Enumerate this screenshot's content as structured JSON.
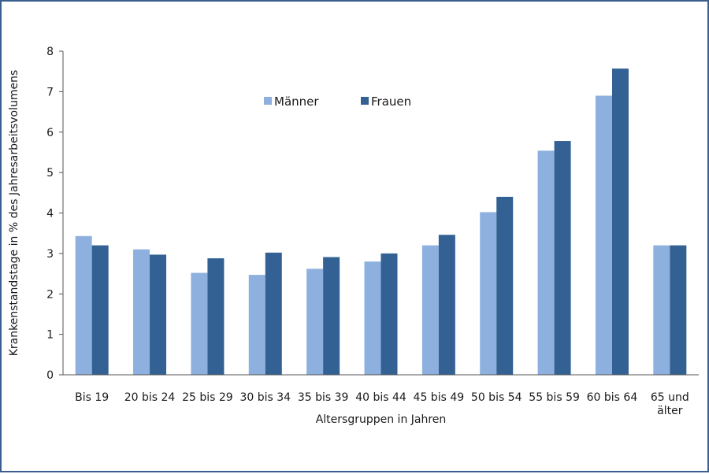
{
  "chart_data": {
    "type": "bar",
    "categories": [
      "Bis 19",
      "20 bis 24",
      "25 bis 29",
      "30 bis 34",
      "35 bis 39",
      "40 bis 44",
      "45 bis 49",
      "50 bis 54",
      "55 bis 59",
      "60 bis 64",
      "65 und\nälter"
    ],
    "series": [
      {
        "name": "Männer",
        "color": "#8db0de",
        "values": [
          3.43,
          3.1,
          2.52,
          2.47,
          2.62,
          2.8,
          3.2,
          4.02,
          5.54,
          6.9,
          3.2
        ]
      },
      {
        "name": "Frauen",
        "color": "#336194",
        "values": [
          3.2,
          2.97,
          2.88,
          3.02,
          2.91,
          3.0,
          3.46,
          4.4,
          5.78,
          7.57,
          3.2
        ]
      }
    ],
    "xlabel": "Altersgruppen in Jahren",
    "ylabel": "Krankenstandstage in % des Jahresarbeitsvolumens",
    "ylim": [
      0,
      8
    ],
    "yticks": [
      0,
      1,
      2,
      3,
      4,
      5,
      6,
      7,
      8
    ],
    "legend_position": "top-center",
    "grid": false
  }
}
